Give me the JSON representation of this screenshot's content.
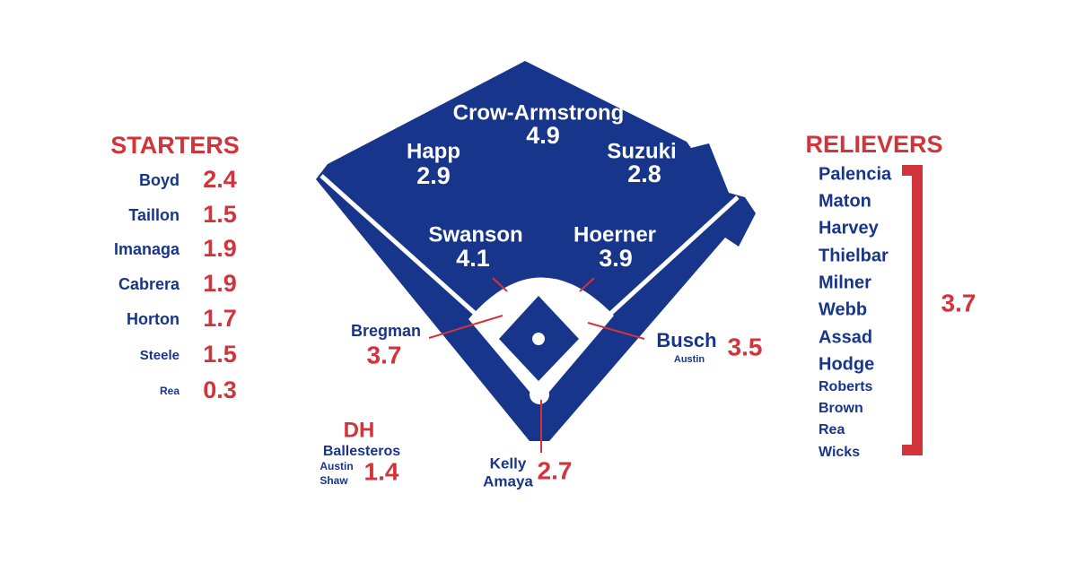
{
  "starters": {
    "title": "STARTERS",
    "players": [
      {
        "name": "Boyd",
        "value": 2.4
      },
      {
        "name": "Taillon",
        "value": 1.5
      },
      {
        "name": "Imanaga",
        "value": 1.9
      },
      {
        "name": "Cabrera",
        "value": 1.9
      },
      {
        "name": "Horton",
        "value": 1.7
      },
      {
        "name": "Steele",
        "value": 1.5
      },
      {
        "name": "Rea",
        "value": 0.3
      }
    ]
  },
  "field": [
    {
      "names": [
        "Crow-Armstrong"
      ],
      "value": 4.9
    },
    {
      "names": [
        "Happ"
      ],
      "value": 2.9
    },
    {
      "names": [
        "Suzuki"
      ],
      "value": 2.8
    },
    {
      "names": [
        "Swanson"
      ],
      "value": 4.1
    },
    {
      "names": [
        "Hoerner"
      ],
      "value": 3.9
    },
    {
      "names": [
        "Bregman"
      ],
      "value": 3.7
    },
    {
      "names": [
        "Busch",
        "Austin"
      ],
      "value": 3.5
    },
    {
      "names": [
        "Kelly",
        "Amaya"
      ],
      "value": 2.7
    }
  ],
  "dh": {
    "title": "DH",
    "names": [
      "Ballesteros",
      "Austin",
      "Shaw"
    ],
    "value": 1.4
  },
  "relievers": {
    "title": "RELIEVERS",
    "names": [
      "Palencia",
      "Maton",
      "Harvey",
      "Thielbar",
      "Milner",
      "Webb",
      "Assad",
      "Hodge",
      "Roberts",
      "Brown",
      "Rea",
      "Wicks"
    ],
    "value": 3.7
  }
}
